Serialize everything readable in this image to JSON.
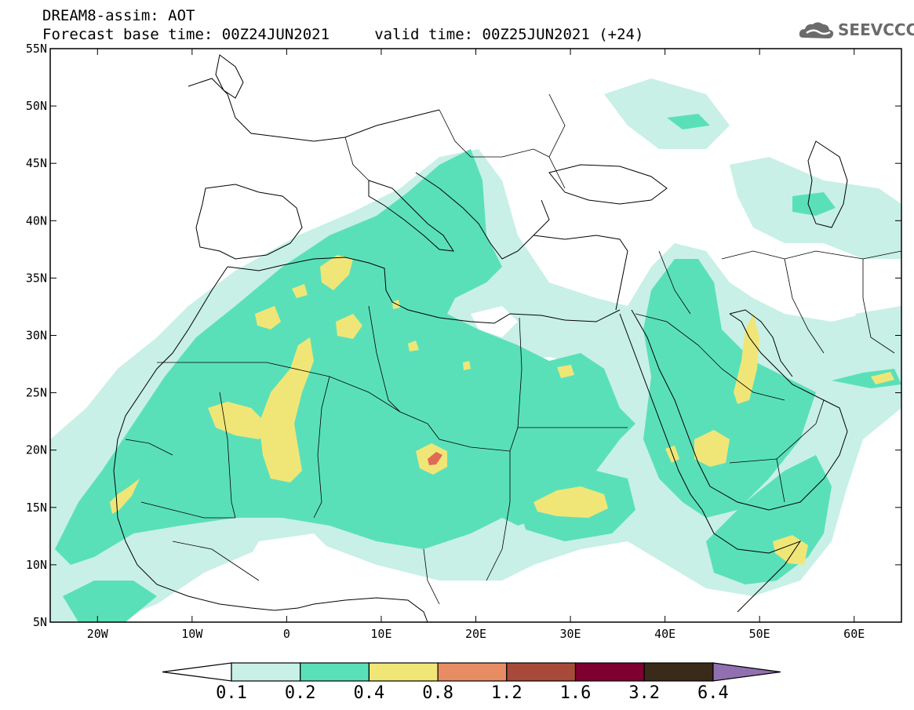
{
  "header": {
    "line1": "DREAM8-assim: AOT",
    "line2": "Forecast base time: 00Z24JUN2021     valid time: 00Z25JUN2021 (+24)"
  },
  "logo": {
    "text": "SEEVCCC",
    "icon": "cloud-icon"
  },
  "map_axes": {
    "lon_range": [
      -25,
      65
    ],
    "lat_range": [
      5,
      55
    ],
    "lon_ticks": [
      {
        "value": -20,
        "label": "20W"
      },
      {
        "value": -10,
        "label": "10W"
      },
      {
        "value": 0,
        "label": "0"
      },
      {
        "value": 10,
        "label": "10E"
      },
      {
        "value": 20,
        "label": "20E"
      },
      {
        "value": 30,
        "label": "30E"
      },
      {
        "value": 40,
        "label": "40E"
      },
      {
        "value": 50,
        "label": "50E"
      },
      {
        "value": 60,
        "label": "60E"
      }
    ],
    "lat_ticks": [
      {
        "value": 5,
        "label": "5N"
      },
      {
        "value": 10,
        "label": "10N"
      },
      {
        "value": 15,
        "label": "15N"
      },
      {
        "value": 20,
        "label": "20N"
      },
      {
        "value": 25,
        "label": "25N"
      },
      {
        "value": 30,
        "label": "30N"
      },
      {
        "value": 35,
        "label": "35N"
      },
      {
        "value": 40,
        "label": "40N"
      },
      {
        "value": 45,
        "label": "45N"
      },
      {
        "value": 50,
        "label": "50N"
      },
      {
        "value": 55,
        "label": "55N"
      }
    ]
  },
  "colorbar": {
    "labels": [
      "0.1",
      "0.2",
      "0.4",
      "0.8",
      "1.2",
      "1.6",
      "3.2",
      "6.4"
    ],
    "colors": [
      "#ffffff",
      "#c8f0e6",
      "#5ae0b9",
      "#f0e678",
      "#e88c64",
      "#a84a3a",
      "#7d0030",
      "#3a2a1a",
      "#9070b0"
    ]
  },
  "legend_colors": {
    "low": "#c8f0e6",
    "mid": "#5ae0b9",
    "high": "#f0e678",
    "peak": "#e06a55"
  }
}
